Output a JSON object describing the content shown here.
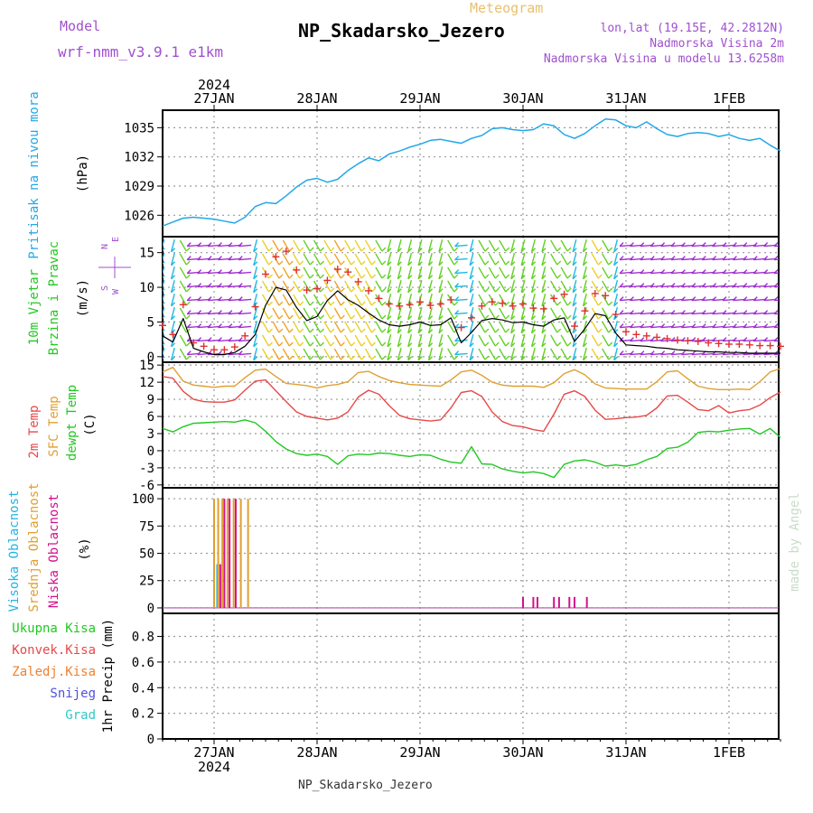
{
  "header": {
    "model_label": "Model",
    "model_name": "wrf-nmm_v3.9.1 e1km",
    "product": "Meteogram",
    "station": "NP_Skadarsko_Jezero",
    "lonlat": "lon,lat (19.15E, 42.2812N)",
    "elevation": "Nadmorska Visina 2m",
    "model_elevation": "Nadmorska Visina u modelu 13.6258m",
    "footer_station": "NP_Skadarsko_Jezero",
    "credit": "made by Angel"
  },
  "colors": {
    "pressure": "#22a8e6",
    "wind_speed": "#000000",
    "gust": "#e03030",
    "temp_2m": "#e84848",
    "temp_sfc": "#e0a030",
    "dewpoint": "#22c822",
    "cloud_high": "#22b4e6",
    "cloud_mid": "#e0a030",
    "cloud_low": "#d4108c",
    "total_precip": "#22c822",
    "conv_precip": "#e84848",
    "frozen_precip": "#f08030",
    "snow": "#5050e0",
    "graupel": "#30c8c8",
    "label_purple": "#a050d0",
    "title": "#000000",
    "product": "#e8c070"
  },
  "time_axis": {
    "top_year": "2024",
    "bottom_year": "2024",
    "date_labels": [
      "27JAN",
      "28JAN",
      "29JAN",
      "30JAN",
      "31JAN",
      "1FEB"
    ]
  },
  "panels": {
    "pressure": {
      "label_line1": "Pritisak na nivou mora",
      "unit": "(hPa)"
    },
    "wind": {
      "label_line1": "10m Vjetar",
      "label_line2": "Brzina i Pravac",
      "unit": "(m/s)",
      "compass": {
        "w": "W",
        "e": "E",
        "n": "N",
        "s": "S"
      }
    },
    "temp": {
      "label_t2m": "2m Temp",
      "label_sfc": "SFC Temp",
      "label_dew": "dewpt Temp",
      "unit": "(C)"
    },
    "cloud": {
      "label_high": "Visoka Oblacnost",
      "label_mid": "Srednja Oblacnost",
      "label_low": "Niska Oblacnost",
      "unit": "(%)"
    },
    "precip": {
      "legend": [
        "Ukupna Kisa",
        "Konvek.Kisa",
        "Zaledj.Kisa",
        "Snijeg",
        "Grad"
      ],
      "unit": "1hr Precip (mm)"
    }
  },
  "chart_data": [
    {
      "type": "line",
      "panel": "pressure",
      "ylabel": "(hPa)",
      "yticks": [
        1026,
        1029,
        1032,
        1035
      ],
      "ylim": [
        1023.8,
        1036.8
      ],
      "x_days_from_27JAN": [
        -0.5,
        -0.4,
        -0.3,
        -0.2,
        -0.1,
        0.0,
        0.1,
        0.2,
        0.3,
        0.4,
        0.5,
        0.6,
        0.7,
        0.8,
        0.9,
        1.0,
        1.1,
        1.2,
        1.3,
        1.4,
        1.5,
        1.6,
        1.7,
        1.8,
        1.9,
        2.0,
        2.1,
        2.2,
        2.3,
        2.4,
        2.5,
        2.6,
        2.7,
        2.8,
        2.9,
        3.0,
        3.1,
        3.2,
        3.3,
        3.4,
        3.5,
        3.6,
        3.7,
        3.8,
        3.9,
        4.0,
        4.1,
        4.2,
        4.3,
        4.4,
        4.5,
        4.6,
        4.7,
        4.8,
        4.9,
        5.0,
        5.1,
        5.2,
        5.3,
        5.4,
        5.5
      ],
      "series": [
        {
          "name": "Pritisak na nivou mora",
          "values": [
            1024.9,
            1025.3,
            1025.7,
            1025.8,
            1025.7,
            1025.6,
            1025.4,
            1025.2,
            1025.8,
            1026.9,
            1027.3,
            1027.2,
            1028.0,
            1028.9,
            1029.6,
            1029.8,
            1029.4,
            1029.7,
            1030.6,
            1031.3,
            1031.9,
            1031.6,
            1032.3,
            1032.6,
            1033.0,
            1033.3,
            1033.7,
            1033.8,
            1033.6,
            1033.4,
            1033.9,
            1034.2,
            1034.9,
            1035.0,
            1034.8,
            1034.7,
            1034.8,
            1035.4,
            1035.2,
            1034.3,
            1033.9,
            1034.4,
            1035.2,
            1035.9,
            1035.8,
            1035.2,
            1035.0,
            1035.6,
            1034.9,
            1034.3,
            1034.1,
            1034.4,
            1034.5,
            1034.4,
            1034.1,
            1034.3,
            1033.9,
            1033.7,
            1033.9,
            1033.2,
            1032.6
          ]
        }
      ]
    },
    {
      "type": "line",
      "panel": "wind",
      "ylabel": "(m/s)",
      "yticks": [
        0,
        5,
        10,
        15
      ],
      "ylim": [
        -0.8,
        17.3
      ],
      "x_days_from_27JAN": [
        -0.5,
        -0.4,
        -0.3,
        -0.2,
        -0.1,
        0.0,
        0.1,
        0.2,
        0.3,
        0.4,
        0.5,
        0.6,
        0.7,
        0.8,
        0.9,
        1.0,
        1.1,
        1.2,
        1.3,
        1.4,
        1.5,
        1.6,
        1.7,
        1.8,
        1.9,
        2.0,
        2.1,
        2.2,
        2.3,
        2.4,
        2.5,
        2.6,
        2.7,
        2.8,
        2.9,
        3.0,
        3.1,
        3.2,
        3.3,
        3.4,
        3.5,
        3.6,
        3.7,
        3.8,
        3.9,
        4.0,
        4.1,
        4.2,
        4.3,
        4.4,
        4.5,
        4.6,
        4.7,
        4.8,
        4.9,
        5.0,
        5.1,
        5.2,
        5.3,
        5.4,
        5.5
      ],
      "series": [
        {
          "name": "wind_speed",
          "values": [
            3.0,
            2.1,
            5.5,
            1.2,
            0.7,
            0.3,
            0.3,
            0.6,
            1.5,
            3.2,
            7.4,
            10.0,
            9.6,
            7.1,
            5.2,
            5.8,
            8.1,
            9.5,
            8.2,
            7.4,
            6.3,
            5.3,
            4.6,
            4.4,
            4.6,
            5.0,
            4.5,
            4.6,
            5.6,
            2.0,
            3.5,
            5.2,
            5.5,
            5.3,
            4.9,
            5.0,
            4.6,
            4.4,
            5.3,
            5.6,
            2.2,
            4.0,
            6.2,
            5.9,
            3.4,
            1.7,
            1.6,
            1.5,
            1.3,
            1.2,
            1.0,
            0.9,
            0.8,
            0.7,
            0.7,
            0.6,
            0.6,
            0.5,
            0.5,
            0.5,
            0.5
          ]
        },
        {
          "name": "gusts",
          "values": [
            4.5,
            3.2,
            7.5,
            2.0,
            1.5,
            1.0,
            1.0,
            1.4,
            3.0,
            7.2,
            11.9,
            14.4,
            15.2,
            12.5,
            9.6,
            9.8,
            11.0,
            12.6,
            12.2,
            10.8,
            9.5,
            8.4,
            7.6,
            7.3,
            7.5,
            7.9,
            7.4,
            7.6,
            8.2,
            4.2,
            5.6,
            7.3,
            7.9,
            7.7,
            7.3,
            7.6,
            7.0,
            6.9,
            8.4,
            9.0,
            4.4,
            6.6,
            9.1,
            8.8,
            6.1,
            3.6,
            3.2,
            3.0,
            2.8,
            2.6,
            2.4,
            2.3,
            2.2,
            2.0,
            1.9,
            1.8,
            1.8,
            1.7,
            1.6,
            1.6,
            1.5
          ]
        }
      ]
    },
    {
      "type": "line",
      "panel": "temperature",
      "ylabel": "(C)",
      "yticks": [
        -6,
        -3,
        0,
        3,
        6,
        9,
        12,
        15
      ],
      "ylim": [
        -6.5,
        15.5
      ],
      "x_days_from_27JAN": [
        -0.5,
        -0.4,
        -0.3,
        -0.2,
        -0.1,
        0.0,
        0.1,
        0.2,
        0.3,
        0.4,
        0.5,
        0.6,
        0.7,
        0.8,
        0.9,
        1.0,
        1.1,
        1.2,
        1.3,
        1.4,
        1.5,
        1.6,
        1.7,
        1.8,
        1.9,
        2.0,
        2.1,
        2.2,
        2.3,
        2.4,
        2.5,
        2.6,
        2.7,
        2.8,
        2.9,
        3.0,
        3.1,
        3.2,
        3.3,
        3.4,
        3.5,
        3.6,
        3.7,
        3.8,
        3.9,
        4.0,
        4.1,
        4.2,
        4.3,
        4.4,
        4.5,
        4.6,
        4.7,
        4.8,
        4.9,
        5.0,
        5.1,
        5.2,
        5.3,
        5.4,
        5.5
      ],
      "series": [
        {
          "name": "2m Temp",
          "values": [
            13.0,
            12.7,
            10.4,
            9.0,
            8.6,
            8.5,
            8.5,
            8.9,
            10.6,
            12.2,
            12.4,
            10.5,
            8.6,
            6.8,
            6.0,
            5.7,
            5.4,
            5.7,
            6.8,
            9.4,
            10.6,
            9.9,
            7.9,
            6.2,
            5.6,
            5.4,
            5.2,
            5.4,
            7.5,
            10.2,
            10.5,
            9.5,
            6.8,
            5.1,
            4.4,
            4.2,
            3.7,
            3.4,
            6.4,
            9.9,
            10.5,
            9.5,
            7.1,
            5.5,
            5.6,
            5.8,
            5.9,
            6.2,
            7.5,
            9.6,
            9.7,
            8.5,
            7.2,
            7.0,
            7.9,
            6.6,
            7.0,
            7.2,
            8.0,
            9.3,
            10.3
          ]
        },
        {
          "name": "SFC Temp",
          "values": [
            13.8,
            14.6,
            12.2,
            11.5,
            11.3,
            11.1,
            11.3,
            11.3,
            12.8,
            14.1,
            14.3,
            13.0,
            11.8,
            11.6,
            11.4,
            11.0,
            11.4,
            11.6,
            12.1,
            13.7,
            13.9,
            13.0,
            12.3,
            11.9,
            11.6,
            11.5,
            11.4,
            11.3,
            12.4,
            13.8,
            14.1,
            13.2,
            12.0,
            11.5,
            11.3,
            11.3,
            11.3,
            11.1,
            11.9,
            13.5,
            14.2,
            13.3,
            11.7,
            11.0,
            10.9,
            10.8,
            10.8,
            10.8,
            12.1,
            13.8,
            14.0,
            12.6,
            11.3,
            10.9,
            10.7,
            10.7,
            10.8,
            10.7,
            12.1,
            13.8,
            14.4
          ]
        },
        {
          "name": "dewpt Temp",
          "values": [
            3.9,
            3.3,
            4.2,
            4.8,
            4.9,
            5.0,
            5.1,
            5.0,
            5.4,
            4.9,
            3.4,
            1.6,
            0.3,
            -0.5,
            -0.8,
            -0.6,
            -1.0,
            -2.4,
            -0.9,
            -0.6,
            -0.7,
            -0.4,
            -0.5,
            -0.8,
            -1.0,
            -0.7,
            -0.8,
            -1.5,
            -2.0,
            -2.2,
            0.7,
            -2.3,
            -2.4,
            -3.2,
            -3.6,
            -3.9,
            -3.7,
            -4.0,
            -4.7,
            -2.4,
            -1.8,
            -1.6,
            -2.0,
            -2.7,
            -2.5,
            -2.7,
            -2.4,
            -1.6,
            -1.0,
            0.4,
            0.6,
            1.5,
            3.2,
            3.4,
            3.3,
            3.6,
            3.8,
            3.9,
            2.9,
            3.9,
            2.3
          ]
        }
      ]
    },
    {
      "type": "bar",
      "panel": "cloud",
      "ylabel": "(%)",
      "yticks": [
        0,
        25,
        50,
        75,
        100
      ],
      "ylim": [
        -5,
        110
      ],
      "series": [
        {
          "name": "Visoka Oblacnost",
          "x_days_from_27JAN": [
            0.03
          ],
          "values": [
            40
          ]
        },
        {
          "name": "Srednja Oblacnost",
          "x_days_from_27JAN": [
            0.0,
            0.04,
            0.08,
            0.13,
            0.19,
            0.26,
            0.33
          ],
          "values": [
            100,
            100,
            100,
            100,
            100,
            100,
            100
          ]
        },
        {
          "name": "Niska Oblacnost",
          "x_days_from_27JAN": [
            0.06,
            0.1,
            0.15,
            0.21,
            3.0,
            3.1,
            3.14,
            3.3,
            3.35,
            3.45,
            3.5,
            3.62
          ],
          "values": [
            40,
            100,
            100,
            100,
            10,
            10,
            10,
            10,
            10,
            10,
            10,
            10
          ]
        }
      ]
    },
    {
      "type": "bar",
      "panel": "precip",
      "ylabel": "1hr Precip (mm)",
      "yticks": [
        0,
        0.2,
        0.4,
        0.6,
        0.8
      ],
      "ylim": [
        0,
        0.98
      ],
      "series": [
        {
          "name": "Ukupna Kisa",
          "values": []
        },
        {
          "name": "Konvek.Kisa",
          "values": []
        },
        {
          "name": "Zaledj.Kisa",
          "values": []
        },
        {
          "name": "Snijeg",
          "values": []
        },
        {
          "name": "Grad",
          "values": []
        }
      ]
    }
  ]
}
